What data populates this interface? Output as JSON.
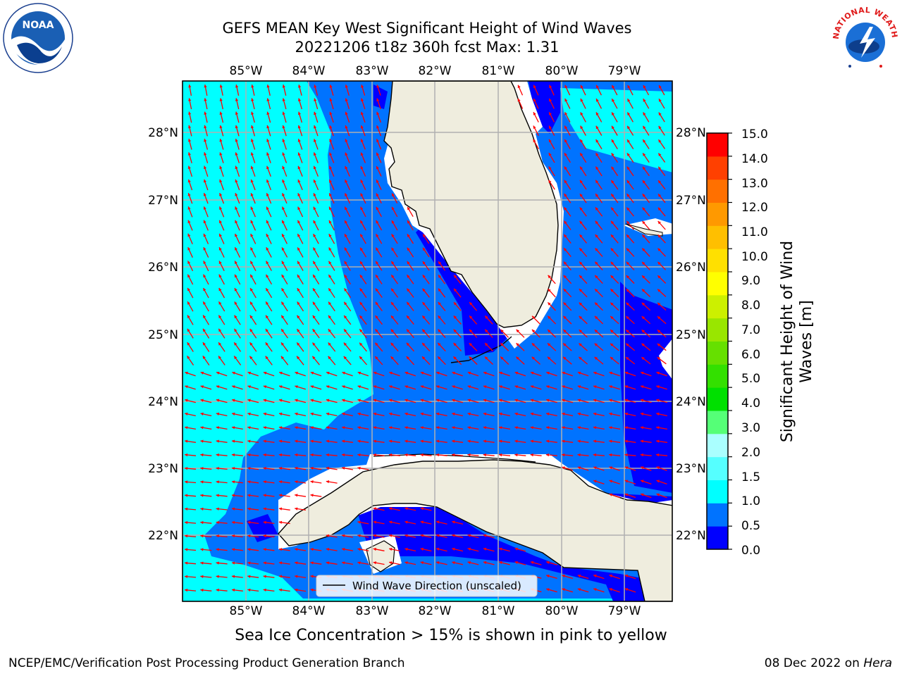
{
  "title": {
    "line1": "GEFS MEAN Key West Significant Height of Wind Waves",
    "line2": "20221206 t18z 360h fcst   Max: 1.31"
  },
  "logos": {
    "left": "NOAA",
    "right": "NATIONAL WEATHER SERVICE"
  },
  "map": {
    "lon_labels": [
      "85°W",
      "84°W",
      "83°W",
      "82°W",
      "81°W",
      "80°W",
      "79°W"
    ],
    "lat_labels": [
      "28°N",
      "27°N",
      "26°N",
      "25°N",
      "24°N",
      "23°N",
      "22°N"
    ],
    "legend_label": "Wind Wave Direction (unscaled)",
    "arrow_color": "#ff0000",
    "land_color": "#efedde",
    "gridline_color": "#b0b0b0"
  },
  "colorbar": {
    "label": "Significant Height of Wind Waves [m]",
    "label_line1": "Significant Height of Wind",
    "label_line2": "Waves [m]",
    "ticks": [
      "15.0",
      "14.0",
      "13.0",
      "12.0",
      "11.0",
      "10.0",
      "9.0",
      "8.0",
      "7.0",
      "6.0",
      "5.0",
      "4.0",
      "3.0",
      "2.0",
      "1.5",
      "1.0",
      "0.5",
      "0.0"
    ],
    "colors_bottom_to_top": [
      "#0000ff",
      "#0073ff",
      "#00ffff",
      "#55ffff",
      "#aaffff",
      "#55ff77",
      "#00e000",
      "#33e000",
      "#66e000",
      "#99e600",
      "#ccf000",
      "#ffff00",
      "#ffe000",
      "#ffbf00",
      "#ff9900",
      "#ff7000",
      "#ff4000",
      "#ff0000"
    ]
  },
  "note": "Sea Ice Concentration > 15% is shown in pink to yellow",
  "footer": {
    "left": "NCEP/EMC/Verification Post Processing Product Generation Branch",
    "right_date": "08 Dec 2022 on ",
    "right_host": "Hera"
  }
}
